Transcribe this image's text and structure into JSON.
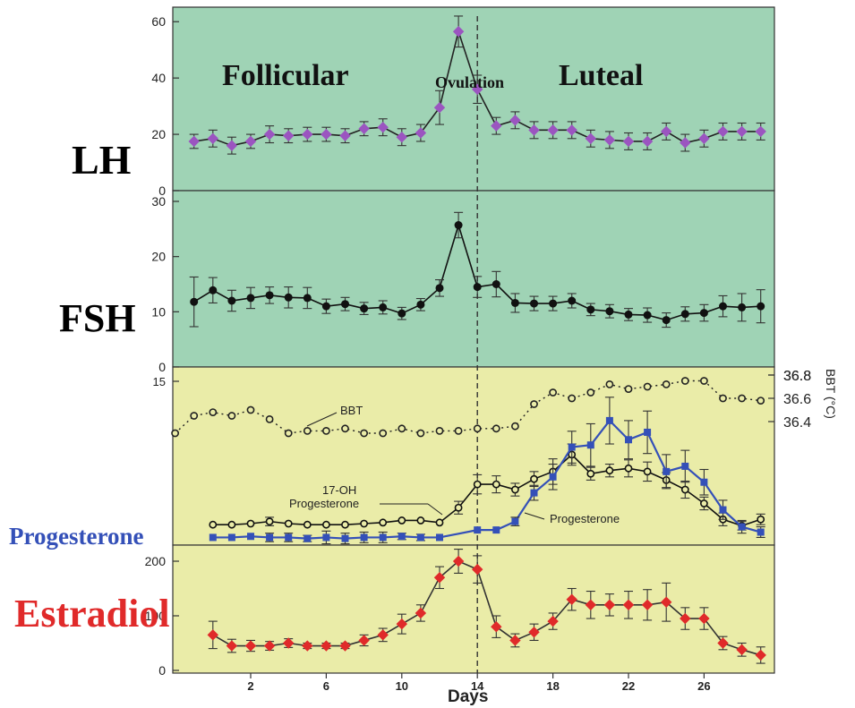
{
  "colors": {
    "upper_panel_bg": "#9fd3b5",
    "lower_panel_bg": "#eaeca8",
    "lh": "#9b55c0",
    "fsh": "#111111",
    "progesterone": "#3450b8",
    "ohp": "#111111",
    "bbt": "#222222",
    "estradiol": "#e02a2a"
  },
  "labels": {
    "lh": "LH",
    "fsh": "FSH",
    "progesterone": "Progesterone",
    "estradiol": "Estradiol",
    "follicular": "Follicular",
    "luteal": "Luteal",
    "ovulation": "Ovulation",
    "xlabel": "Days",
    "bbt_unit": "BBT (°C)",
    "bbt_series": "BBT",
    "ohp_series_line1": "17-OH",
    "ohp_series_line2": "Progesterone",
    "prog_series": "Progesterone"
  },
  "chart_data": [
    {
      "type": "line",
      "id": "lh",
      "ylabel": "LH",
      "ylim": [
        0,
        65
      ],
      "yticks": [
        0,
        20,
        40,
        60
      ],
      "ovulation_day": 14,
      "x": [
        -1,
        0,
        1,
        2,
        3,
        4,
        5,
        6,
        7,
        8,
        9,
        10,
        11,
        12,
        13,
        14,
        15,
        16,
        17,
        18,
        19,
        20,
        21,
        22,
        23,
        24,
        25,
        26,
        27,
        28,
        29
      ],
      "values": [
        17.5,
        18.5,
        16,
        17.5,
        20,
        19.5,
        20,
        20,
        19.5,
        22,
        22.5,
        19,
        20.5,
        29.5,
        56.5,
        36,
        23,
        25,
        21.5,
        21.5,
        21.5,
        18.5,
        18,
        17.5,
        17.5,
        21,
        17,
        18.5,
        21,
        21,
        21
      ],
      "errors": [
        2.5,
        3,
        3,
        2.5,
        3,
        2.5,
        2.5,
        2.5,
        2.5,
        2.5,
        3,
        3,
        3,
        6,
        5.5,
        5,
        3,
        3,
        3,
        3,
        3,
        3,
        3,
        3,
        3,
        3,
        3,
        3,
        3,
        3,
        3
      ]
    },
    {
      "type": "line",
      "id": "fsh",
      "ylabel": "FSH",
      "ylim": [
        0,
        31
      ],
      "yticks": [
        0,
        10,
        20,
        30
      ],
      "x": [
        -1,
        0,
        1,
        2,
        3,
        4,
        5,
        6,
        7,
        8,
        9,
        10,
        11,
        12,
        13,
        14,
        15,
        16,
        17,
        18,
        19,
        20,
        21,
        22,
        23,
        24,
        25,
        26,
        27,
        28,
        29
      ],
      "values": [
        11.8,
        13.9,
        12,
        12.5,
        13,
        12.6,
        12.5,
        11,
        11.4,
        10.6,
        10.8,
        9.7,
        11.3,
        14.3,
        25.7,
        14.5,
        15,
        11.6,
        11.5,
        11.5,
        12,
        10.4,
        10.1,
        9.5,
        9.4,
        8.5,
        9.6,
        9.8,
        11,
        10.8,
        11
      ],
      "errors": [
        4.5,
        2.3,
        1.9,
        1.9,
        1.5,
        1.9,
        1.9,
        1.3,
        1.2,
        1.1,
        1.2,
        1.1,
        1.1,
        1.5,
        2.3,
        1.9,
        2.3,
        1.7,
        1.3,
        1.3,
        1.3,
        1.1,
        1.2,
        1.1,
        1.3,
        1.3,
        1.3,
        1.5,
        1.9,
        2.5,
        3
      ]
    },
    {
      "type": "line",
      "id": "progesterone_panel",
      "ylim": [
        0,
        15
      ],
      "yticks_left": [
        15
      ],
      "bbt_ylim": [
        36.1,
        36.9
      ],
      "bbt_yticks": [
        36.4,
        36.6,
        36.8
      ],
      "bbt_ylabel": "BBT (°C)",
      "series": [
        {
          "name": "BBT",
          "x": [
            -2,
            -1,
            0,
            1,
            2,
            3,
            4,
            5,
            6,
            7,
            8,
            9,
            10,
            11,
            12,
            13,
            14,
            15,
            16,
            17,
            18,
            19,
            20,
            21,
            22,
            23,
            24,
            25,
            26,
            27,
            28,
            29
          ],
          "values": [
            36.3,
            36.45,
            36.48,
            36.45,
            36.5,
            36.42,
            36.3,
            36.32,
            36.32,
            36.34,
            36.3,
            36.3,
            36.34,
            36.3,
            36.32,
            36.32,
            36.34,
            36.34,
            36.36,
            36.55,
            36.65,
            36.6,
            36.65,
            36.72,
            36.68,
            36.7,
            36.72,
            36.75,
            36.75,
            36.6,
            36.6,
            36.58
          ]
        },
        {
          "name": "17-OH Progesterone",
          "x": [
            0,
            1,
            2,
            3,
            4,
            5,
            6,
            7,
            8,
            9,
            10,
            11,
            12,
            13,
            14,
            15,
            16,
            17,
            18,
            19,
            20,
            21,
            22,
            23,
            24,
            25,
            26,
            27,
            28,
            29
          ],
          "values": [
            1.5,
            1.5,
            1.6,
            1.8,
            1.6,
            1.5,
            1.5,
            1.5,
            1.6,
            1.7,
            1.9,
            1.9,
            1.7,
            3.1,
            5.3,
            5.3,
            4.8,
            5.8,
            6.5,
            8.1,
            6.3,
            6.6,
            6.8,
            6.5,
            5.7,
            4.8,
            3.5,
            2.0,
            1.4,
            2.0
          ],
          "errors": [
            0,
            0,
            0,
            0.4,
            0,
            0,
            0,
            0,
            0,
            0,
            0,
            0,
            0,
            0.6,
            0.9,
            0.8,
            0.6,
            0.7,
            1.2,
            1.0,
            0.6,
            0.6,
            0.8,
            0.9,
            0.7,
            0.8,
            0.6,
            0.6,
            0.4,
            0.5
          ]
        },
        {
          "name": "Progesterone",
          "x": [
            0,
            1,
            2,
            3,
            4,
            5,
            6,
            7,
            8,
            9,
            10,
            11,
            12,
            14,
            15,
            16,
            17,
            18,
            19,
            20,
            21,
            22,
            23,
            24,
            25,
            26,
            27,
            28,
            29
          ],
          "values": [
            0.3,
            0.3,
            0.4,
            0.3,
            0.3,
            0.2,
            0.3,
            0.2,
            0.3,
            0.3,
            0.4,
            0.3,
            0.3,
            1.0,
            1.0,
            1.8,
            4.5,
            6.0,
            8.8,
            9.0,
            11.3,
            9.5,
            10.2,
            6.5,
            7.0,
            5.5,
            2.9,
            1.3,
            0.8
          ],
          "errors": [
            0,
            0,
            0,
            0.4,
            0.4,
            0.3,
            0.6,
            0.5,
            0.5,
            0.5,
            0.3,
            0.3,
            0,
            0,
            0,
            0.4,
            0.7,
            1.2,
            1.5,
            2.0,
            2.2,
            1.8,
            2.0,
            1.6,
            1.5,
            1.2,
            0.9,
            0.6,
            0.5
          ]
        }
      ]
    },
    {
      "type": "line",
      "id": "estradiol",
      "ylabel": "Estradiol",
      "ylim": [
        0,
        210
      ],
      "yticks": [
        0,
        100,
        200
      ],
      "x": [
        0,
        1,
        2,
        3,
        4,
        5,
        6,
        7,
        8,
        9,
        10,
        11,
        12,
        13,
        14,
        15,
        16,
        17,
        18,
        19,
        20,
        21,
        22,
        23,
        24,
        25,
        26,
        27,
        28,
        29
      ],
      "values": [
        65,
        45,
        45,
        45,
        50,
        45,
        45,
        45,
        55,
        65,
        85,
        105,
        170,
        200,
        185,
        80,
        55,
        70,
        90,
        130,
        120,
        120,
        120,
        120,
        125,
        95,
        95,
        50,
        38,
        28
      ],
      "errors": [
        25,
        12,
        10,
        8,
        8,
        5,
        5,
        5,
        10,
        12,
        18,
        15,
        20,
        22,
        25,
        20,
        12,
        15,
        15,
        20,
        25,
        20,
        25,
        28,
        35,
        20,
        20,
        12,
        12,
        15
      ],
      "xlabel": "Days",
      "xticks": [
        2,
        6,
        10,
        14,
        18,
        22,
        26
      ]
    }
  ]
}
